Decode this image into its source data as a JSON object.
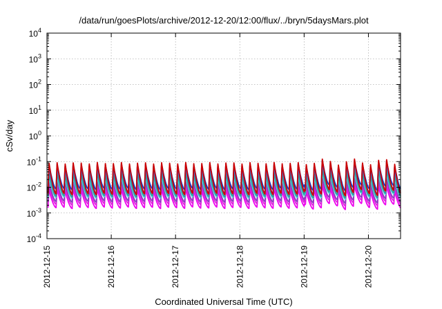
{
  "chart_data": {
    "type": "line",
    "title": "/data/run/goesPlots/archive/2012-12-20/12:00/flux/../bryn/5daysMars.plot",
    "xlabel": "Coordinated Universal Time (UTC)",
    "ylabel": "cSv/day",
    "y_scale": "log",
    "ylim": [
      0.0001,
      10000
    ],
    "y_ticks": [
      {
        "value": 0.0001,
        "base": "10",
        "exp": "-4"
      },
      {
        "value": 0.001,
        "base": "10",
        "exp": "-3"
      },
      {
        "value": 0.01,
        "base": "10",
        "exp": "-2"
      },
      {
        "value": 0.1,
        "base": "10",
        "exp": "-1"
      },
      {
        "value": 1,
        "base": "10",
        "exp": "0"
      },
      {
        "value": 10,
        "base": "10",
        "exp": "1"
      },
      {
        "value": 100,
        "base": "10",
        "exp": "2"
      },
      {
        "value": 1000,
        "base": "10",
        "exp": "3"
      },
      {
        "value": 10000,
        "base": "10",
        "exp": "4"
      }
    ],
    "xlim": [
      "2012-12-15",
      "2012-12-20 12:00"
    ],
    "x_ticks": [
      "2012-12-15",
      "2012-12-16",
      "2012-12-17",
      "2012-12-18",
      "2012-12-19",
      "2012-12-20"
    ],
    "grid": true,
    "legend": "none",
    "sawtooth_period_hours": 3,
    "series": [
      {
        "color": "#cc0000",
        "peak": 0.092,
        "trough": 0.0055
      },
      {
        "color": "#0a3fcf",
        "peak": 0.082,
        "trough": 0.0085
      },
      {
        "color": "#3a6fe8",
        "peak": 0.06,
        "trough": 0.006
      },
      {
        "color": "#2e9e9e",
        "peak": 0.035,
        "trough": 0.0045
      },
      {
        "color": "#4ad8d8",
        "peak": 0.025,
        "trough": 0.004
      },
      {
        "color": "#8a3fbf",
        "peak": 0.016,
        "trough": 0.0028
      },
      {
        "color": "#dd22dd",
        "peak": 0.012,
        "trough": 0.0022
      },
      {
        "color": "#ee00ee",
        "peak": 0.008,
        "trough": 0.0016
      }
    ]
  }
}
